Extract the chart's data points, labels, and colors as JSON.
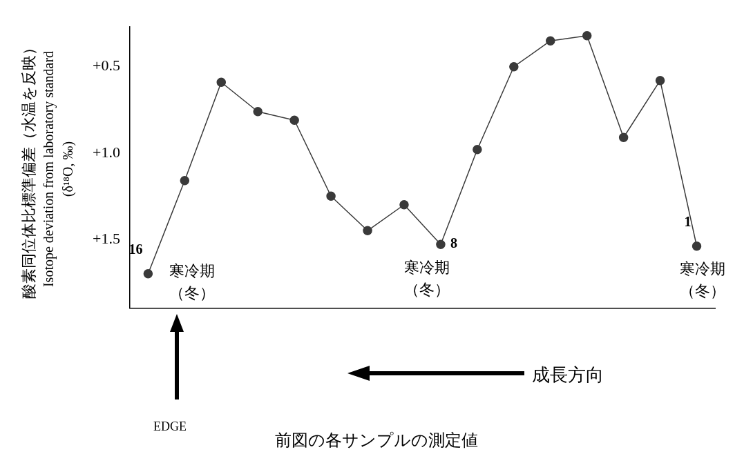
{
  "chart_data": {
    "type": "line",
    "ylabel": "酸素同位体比標準偏差（水温を反映）\nIsotope deviation from laboratory standard\n(δ¹⁸O, ‰)",
    "categories": [
      "16",
      null,
      null,
      null,
      null,
      null,
      null,
      null,
      "8",
      null,
      null,
      null,
      null,
      null,
      null,
      "1"
    ],
    "series": [
      {
        "color": "#3a3a3a",
        "values": [
          1.7,
          1.16,
          0.59,
          0.76,
          0.81,
          1.25,
          1.45,
          1.3,
          1.53,
          0.98,
          0.5,
          0.35,
          0.32,
          0.91,
          0.58,
          1.54
        ]
      }
    ],
    "ylim": [
      1.9,
      0.27
    ],
    "yticks": [
      {
        "value": 0.5,
        "label": "+0.5"
      },
      {
        "value": 1.0,
        "label": "+1.0"
      },
      {
        "value": 1.5,
        "label": "+1.5"
      }
    ],
    "grid": false,
    "legend": false,
    "marker": "circle",
    "line_style": "solid",
    "annotations": [
      {
        "text": "寒冷期",
        "x": "16",
        "y": 1.7
      },
      {
        "text": "（冬）",
        "x": "16",
        "y": 1.7
      },
      {
        "text": "寒冷期",
        "x": "8",
        "y": 1.53
      },
      {
        "text": "（冬）",
        "x": "8",
        "y": 1.53
      },
      {
        "text": "寒冷期",
        "x": "1",
        "y": 1.54
      },
      {
        "text": "（冬）",
        "x": "1",
        "y": 1.54
      },
      "EDGE",
      "成長方向",
      "前図の各サンプルの測定値"
    ]
  }
}
